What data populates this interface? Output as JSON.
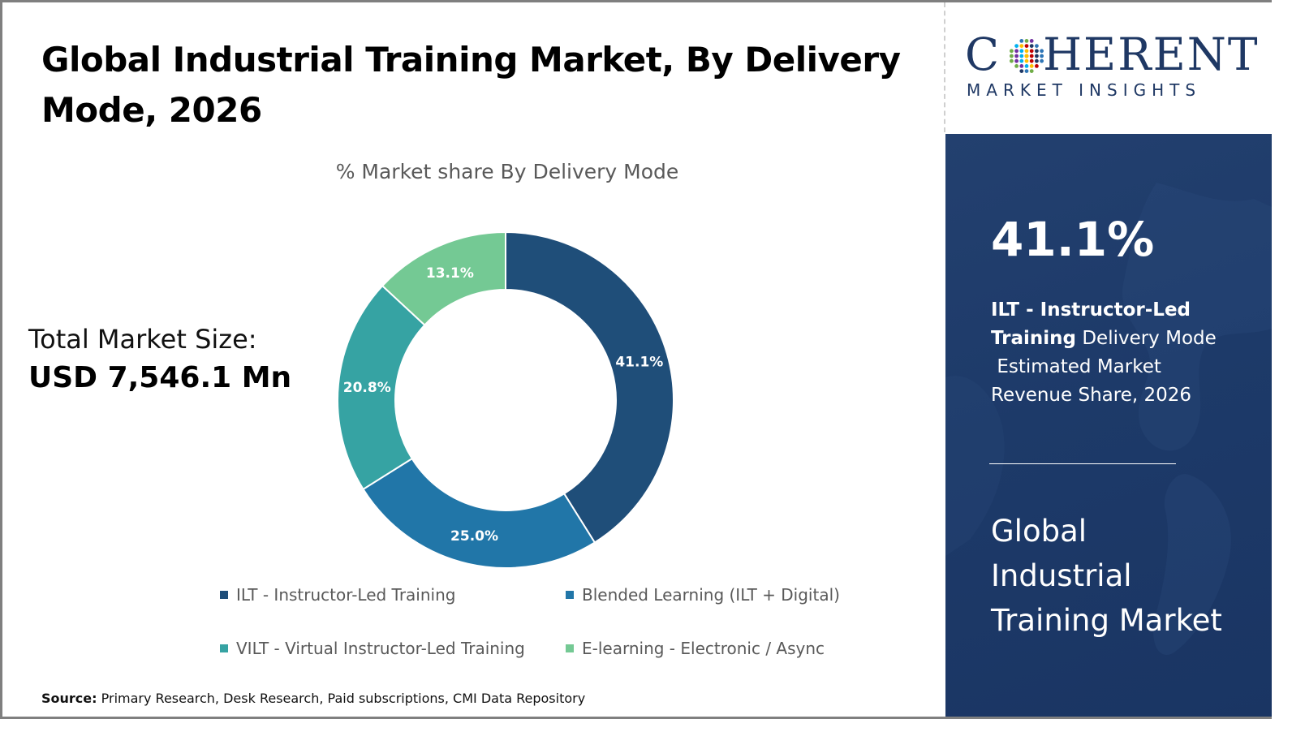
{
  "title": "Global Industrial Training Market, By Delivery Mode, 2026",
  "total_market": {
    "label": "Total Market Size:",
    "value": "USD 7,546.1 Mn"
  },
  "source": {
    "label": "Source:",
    "text": "Primary Research, Desk Research, Paid subscriptions, CMI Data Repository"
  },
  "logo": {
    "word": "COHERENT",
    "subtitle": "MARKET INSIGHTS"
  },
  "panel": {
    "highlight_value": "41.1%",
    "desc_bold_1": "ILT - Instructor-Led",
    "desc_bold_2": "Training",
    "desc_rest_1": " Delivery Mode",
    "desc_rest_2": "Estimated Market",
    "desc_rest_3": "Revenue Share, 2026",
    "market_title": "Global Industrial Training Market"
  },
  "chart_data": {
    "type": "pie",
    "subtype": "donut",
    "title": "% Market share By Delivery Mode",
    "categories": [
      "ILT - Instructor-Led Training",
      "Blended Learning (ILT + Digital)",
      "VILT - Virtual Instructor-Led Training",
      "E-learning - Electronic / Async"
    ],
    "values": [
      41.1,
      25.0,
      20.8,
      13.1
    ],
    "labels": [
      "41.1%",
      "25.0%",
      "20.8%",
      "13.1%"
    ],
    "colors": [
      "#1f4e79",
      "#2176a8",
      "#36a3a3",
      "#74c994"
    ],
    "legend_position": "bottom"
  }
}
